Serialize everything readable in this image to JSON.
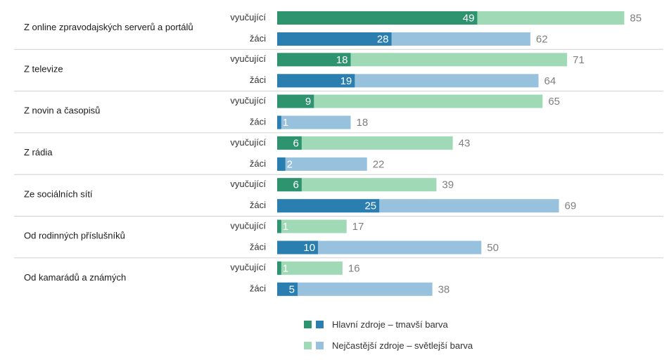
{
  "chart_data": {
    "type": "bar",
    "orientation": "horizontal",
    "stacked_overlay": true,
    "categories": [
      "Z online zpravodajských serverů a portálů",
      "Z televize",
      "Z novin a časopisů",
      "Z rádia",
      "Ze sociálních sítí",
      "Od rodinných příslušníků",
      "Od kamarádů a známých"
    ],
    "groups": [
      "vyučující",
      "žáci"
    ],
    "series": [
      {
        "name": "Hlavní zdroje – tmavší barva",
        "group": "vyučující",
        "values": [
          49,
          18,
          9,
          6,
          6,
          1,
          1
        ]
      },
      {
        "name": "Nejčastější zdroje – světlejší barva",
        "group": "vyučující",
        "values": [
          85,
          71,
          65,
          43,
          39,
          17,
          16
        ]
      },
      {
        "name": "Hlavní zdroje – tmavší barva",
        "group": "žáci",
        "values": [
          28,
          19,
          1,
          2,
          25,
          10,
          5
        ]
      },
      {
        "name": "Nejčastější zdroje – světlejší barva",
        "group": "žáci",
        "values": [
          62,
          64,
          18,
          22,
          69,
          50,
          38
        ]
      }
    ],
    "xlim": [
      0,
      100
    ],
    "grid": false,
    "legend_position": "bottom-center",
    "legend": [
      {
        "label": "Hlavní zdroje – tmavší barva",
        "colors": [
          "#2e9470",
          "#2a7fb0"
        ]
      },
      {
        "label": "Nejčastější zdroje – světlejší barva",
        "colors": [
          "#9fd9b5",
          "#97c1dc"
        ]
      }
    ]
  },
  "colors": {
    "teacher_main": "#2e9470",
    "teacher_frequent": "#9fd9b5",
    "student_main": "#2a7fb0",
    "student_frequent": "#97c1dc",
    "separator": "#d0d0d0"
  }
}
